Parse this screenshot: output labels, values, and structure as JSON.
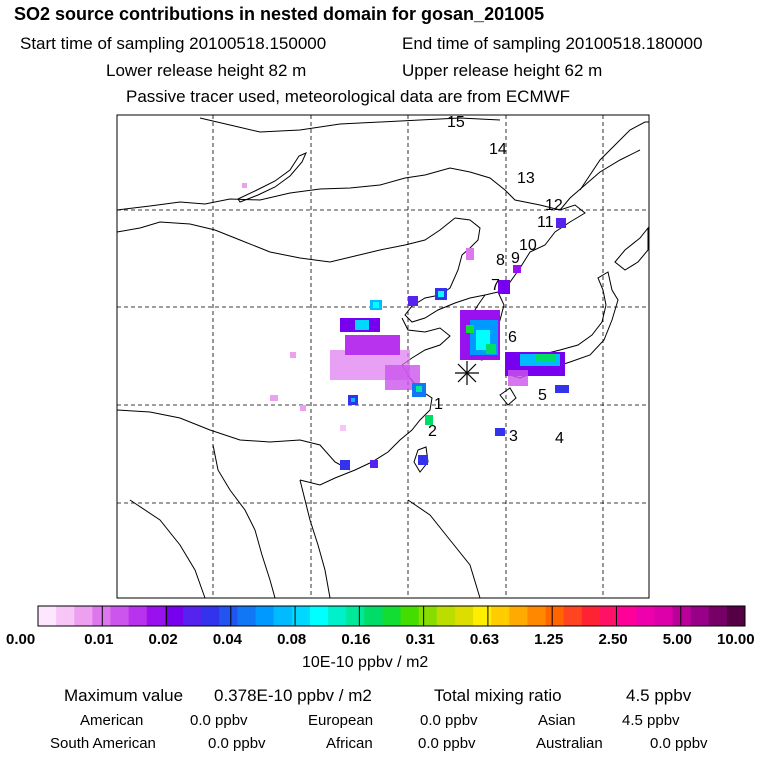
{
  "header": {
    "title": "SO2 source contributions in nested domain for gosan_201005",
    "start_time": "Start time of sampling 20100518.150000",
    "end_time": "End time of sampling 20100518.180000",
    "lower_height": "Lower release height   82 m",
    "upper_height": "Upper release height   62 m",
    "tracer": "Passive tracer used, meteorological data are from ECMWF"
  },
  "map": {
    "trajectory_labels": [
      "1",
      "2",
      "3",
      "4",
      "5",
      "6",
      "7",
      "8",
      "9",
      "10",
      "11",
      "12",
      "13",
      "14",
      "15"
    ],
    "receptor_symbol": "*"
  },
  "colorbar": {
    "tick_labels": [
      "0.00",
      "0.01",
      "0.02",
      "0.04",
      "0.08",
      "0.16",
      "0.31",
      "0.63",
      "1.25",
      "2.50",
      "5.00",
      "10.00"
    ],
    "colors": [
      "#ffe6ff",
      "#f7c6f7",
      "#eea0f0",
      "#dd77ee",
      "#cc55ee",
      "#b833ee",
      "#9911ee",
      "#7700ee",
      "#5522ee",
      "#3333ee",
      "#2255f0",
      "#1177f5",
      "#0099ff",
      "#00bbff",
      "#00d8ff",
      "#00ffff",
      "#00f0cc",
      "#00e899",
      "#00dd66",
      "#11dd33",
      "#44dd00",
      "#88dd00",
      "#bbdd00",
      "#dddd00",
      "#ffee00",
      "#ffcc00",
      "#ffaa00",
      "#ff8800",
      "#ff6600",
      "#ff4422",
      "#ff2233",
      "#ff1166",
      "#ff0099",
      "#ee00aa",
      "#dd00aa",
      "#bb0099",
      "#990088",
      "#770066",
      "#550044"
    ],
    "units": "10E-10 ppbv / m2"
  },
  "summary": {
    "max_label": "Maximum value",
    "max_value": "0.378E-10 ppbv / m2",
    "total_label": "Total mixing ratio",
    "total_value": "4.5 ppbv",
    "sources": [
      {
        "name": "American",
        "value": "0.0 ppbv"
      },
      {
        "name": "European",
        "value": "0.0 ppbv"
      },
      {
        "name": "Asian",
        "value": "4.5 ppbv"
      },
      {
        "name": "South American",
        "value": "0.0 ppbv"
      },
      {
        "name": "African",
        "value": "0.0 ppbv"
      },
      {
        "name": "Australian",
        "value": "0.0 ppbv"
      }
    ]
  }
}
